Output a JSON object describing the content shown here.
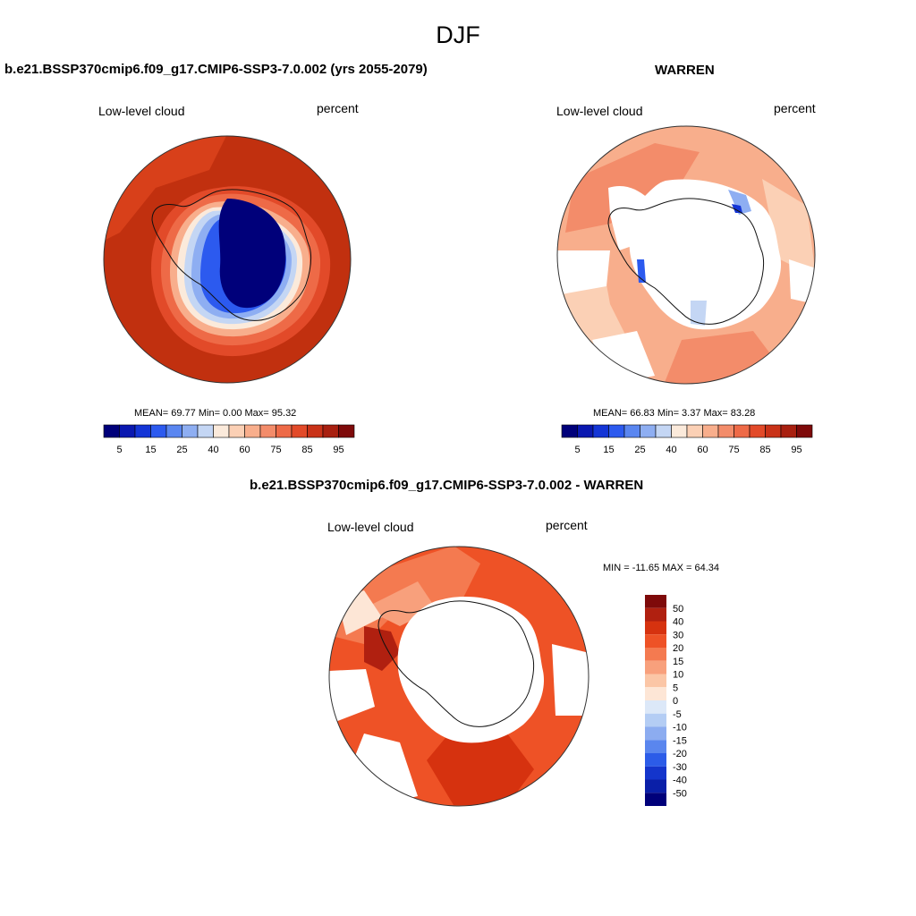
{
  "figure": {
    "title": "DJF"
  },
  "panels": {
    "model": {
      "title": "b.e21.BSSP370cmip6.f09_g17.CMIP6-SSP3-7.0.002 (yrs 2055-2079)",
      "variable": "Low-level cloud",
      "units": "percent",
      "stats": "MEAN=  69.77  Min=   0.00  Max=  95.32"
    },
    "obs": {
      "title": "WARREN",
      "variable": "Low-level cloud",
      "units": "percent",
      "stats": "MEAN=  66.83  Min=   3.37  Max=  83.28"
    },
    "diff": {
      "title": "b.e21.BSSP370cmip6.f09_g17.CMIP6-SSP3-7.0.002 - WARREN",
      "variable": "Low-level cloud",
      "units": "percent",
      "stats": "MIN = -11.65 MAX =  64.34"
    }
  },
  "colorbars": {
    "absolute": {
      "colors": [
        "#00007a",
        "#0a18b0",
        "#1435d6",
        "#2c5aef",
        "#5a86f0",
        "#8eaef2",
        "#c4d6f4",
        "#fbeadb",
        "#fbd0b5",
        "#f8ae8c",
        "#f38c6a",
        "#ee6a47",
        "#e24a29",
        "#c93218",
        "#a82010",
        "#7e0a0a"
      ],
      "ticks": [
        "5",
        "15",
        "25",
        "40",
        "60",
        "75",
        "85",
        "95"
      ]
    },
    "difference": {
      "colors": [
        "#7e0a0a",
        "#b02010",
        "#d6320f",
        "#ee5226",
        "#f47a50",
        "#f8a07c",
        "#fbc6a6",
        "#fde6d6",
        "#dce8f8",
        "#b4cdf4",
        "#8cacf0",
        "#5a86ee",
        "#2c5ce8",
        "#1435cc",
        "#0a1fa8",
        "#00007a"
      ],
      "ticks": [
        "50",
        "40",
        "30",
        "20",
        "15",
        "10",
        "5",
        "0",
        "-5",
        "-10",
        "-15",
        "-20",
        "-30",
        "-40",
        "-50"
      ]
    }
  }
}
